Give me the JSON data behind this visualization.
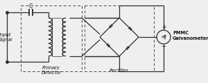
{
  "bg_color": "#efefef",
  "line_color": "#2a2a2a",
  "dashed_color": "#444444",
  "text_color": "#111111",
  "fig_width": 3.0,
  "fig_height": 1.21,
  "dpi": 100,
  "labels": {
    "input_signal": "Input\nSignal",
    "primary_detector": "Primary\nDetector",
    "rectifier": "Rectifier",
    "pmmc": "PMMC\nGalvanometer",
    "capacitor": "C"
  }
}
